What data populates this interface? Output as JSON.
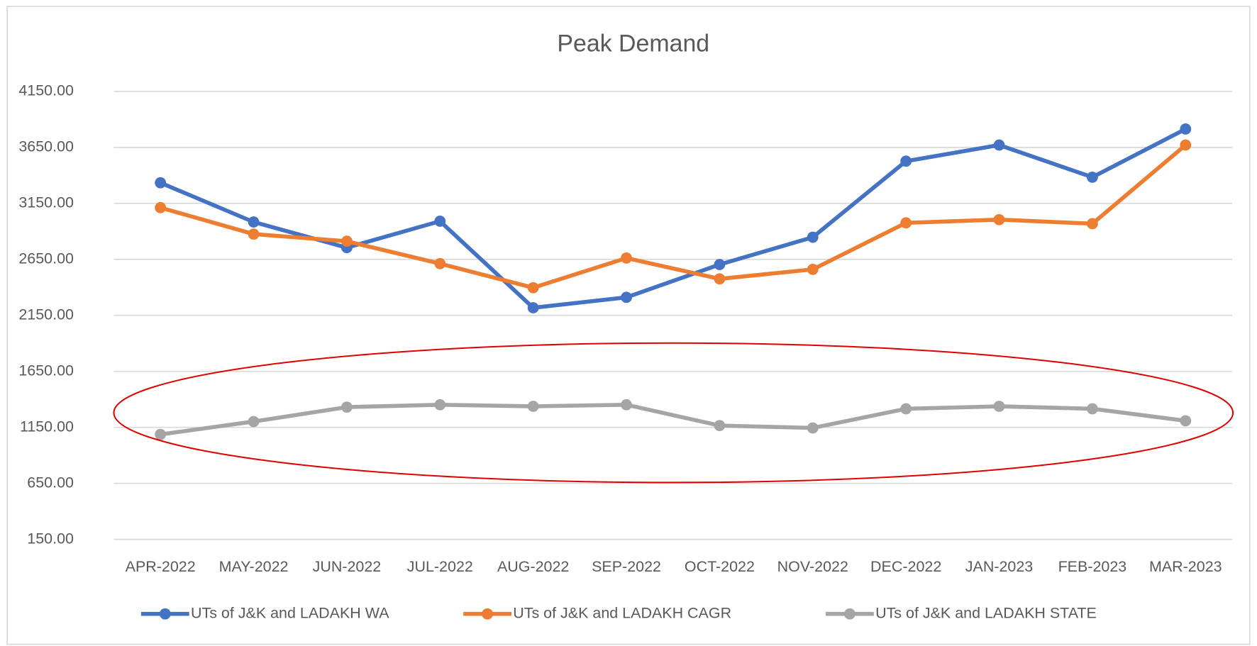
{
  "chart_data": {
    "type": "line",
    "title": "Peak Demand",
    "categories": [
      "APR-2022",
      "MAY-2022",
      "JUN-2022",
      "JUL-2022",
      "AUG-2022",
      "SEP-2022",
      "OCT-2022",
      "NOV-2022",
      "DEC-2022",
      "JAN-2023",
      "FEB-2023",
      "MAR-2023"
    ],
    "series": [
      {
        "name": "UTs of J&K and LADAKH WA",
        "color": "#4472c4",
        "values": [
          3334,
          2984,
          2755,
          2991,
          2218,
          2311,
          2604,
          2848,
          3527,
          3671,
          3384,
          3814
        ]
      },
      {
        "name": "UTs of J&K and LADAKH CAGR",
        "color": "#ed7d31",
        "values": [
          3112,
          2876,
          2812,
          2612,
          2397,
          2662,
          2476,
          2561,
          2976,
          3005,
          2969,
          3671
        ]
      },
      {
        "name": "UTs of J&K and LADAKH STATE",
        "color": "#a5a5a5",
        "values": [
          1087,
          1202,
          1331,
          1352,
          1338,
          1352,
          1166,
          1145,
          1316,
          1338,
          1316,
          1209
        ]
      }
    ],
    "ylim": [
      150,
      4150
    ],
    "yticks": [
      {
        "value": 150,
        "label": "150.00"
      },
      {
        "value": 650,
        "label": "650.00"
      },
      {
        "value": 1150,
        "label": "1150.00"
      },
      {
        "value": 1650,
        "label": "1650.00"
      },
      {
        "value": 2150,
        "label": "2150.00"
      },
      {
        "value": 2650,
        "label": "2650.00"
      },
      {
        "value": 3150,
        "label": "3150.00"
      },
      {
        "value": 3650,
        "label": "3650.00"
      },
      {
        "value": 4150,
        "label": "4150.00"
      }
    ],
    "grid": true,
    "legend": "bottom"
  }
}
